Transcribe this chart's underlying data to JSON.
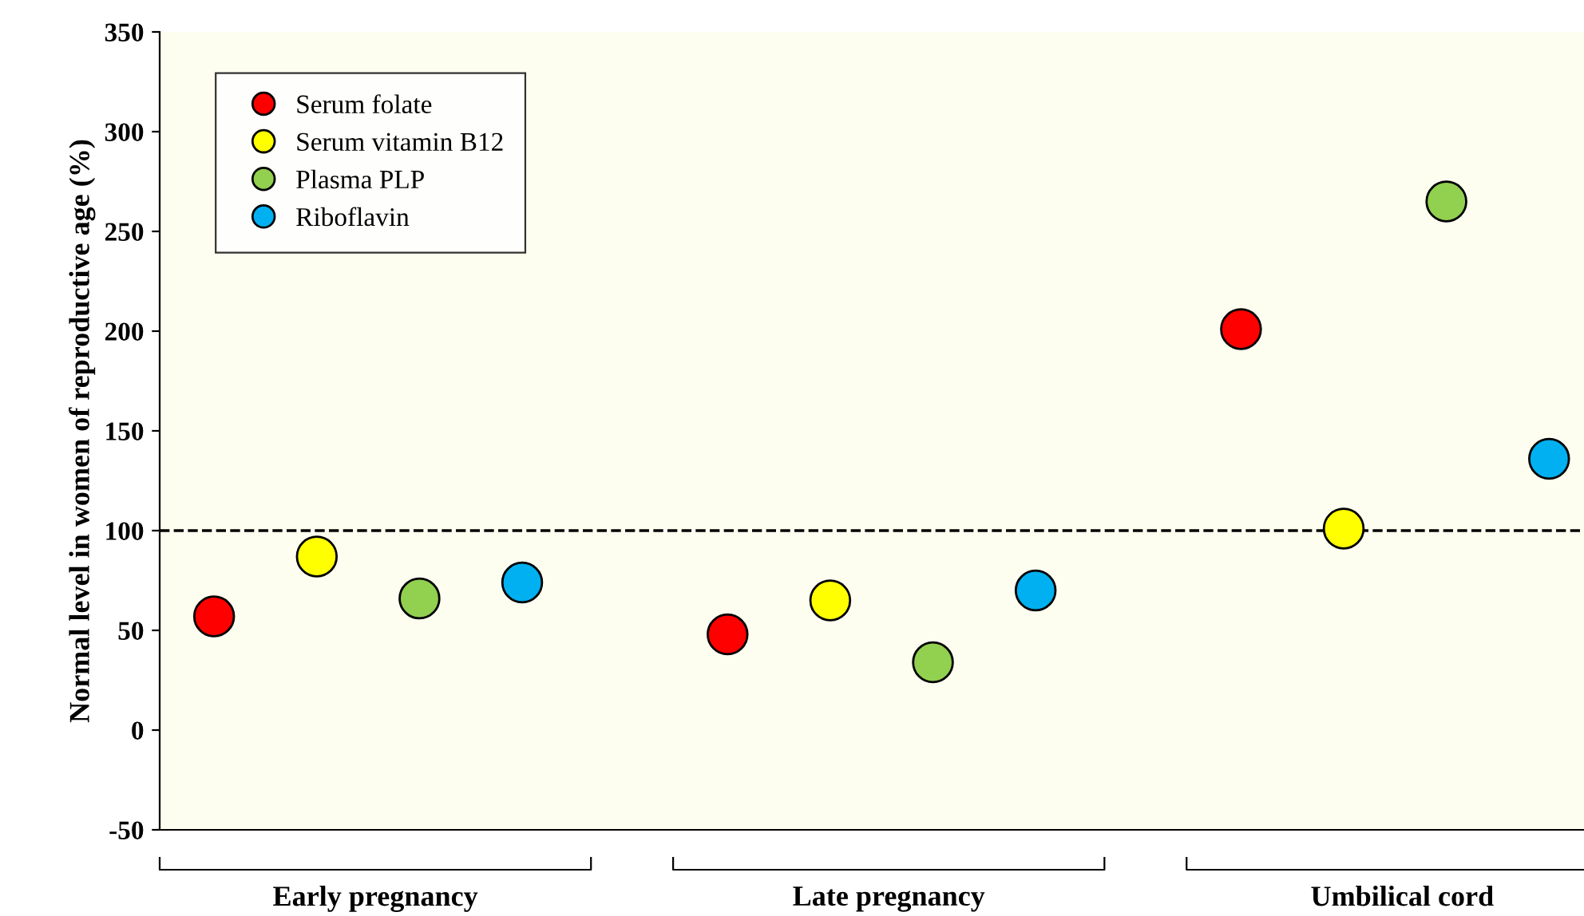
{
  "chart_data": {
    "type": "scatter",
    "ylabel": "Normal level in women of reproductive age (%)",
    "categories": [
      "Early pregnancy",
      "Late pregnancy",
      "Umbilical cord"
    ],
    "series": [
      {
        "name": "Serum folate",
        "color": "#ff0000",
        "values": [
          57,
          48,
          201
        ]
      },
      {
        "name": "Serum vitamin B12",
        "color": "#ffff00",
        "values": [
          87,
          65,
          101
        ]
      },
      {
        "name": "Plasma PLP",
        "color": "#92d050",
        "values": [
          66,
          34,
          265
        ]
      },
      {
        "name": "Riboflavin",
        "color": "#00b0f0",
        "values": [
          74,
          70,
          136
        ]
      }
    ],
    "ylim": [
      -50,
      350
    ],
    "yticks": [
      -50,
      0,
      50,
      100,
      150,
      200,
      250,
      300,
      350
    ],
    "ref_lines": [
      {
        "axis": "y",
        "value": 100,
        "line_style": "dashed",
        "color": "#000000"
      }
    ],
    "grid": false,
    "legend": "top left",
    "marker": "circle"
  }
}
